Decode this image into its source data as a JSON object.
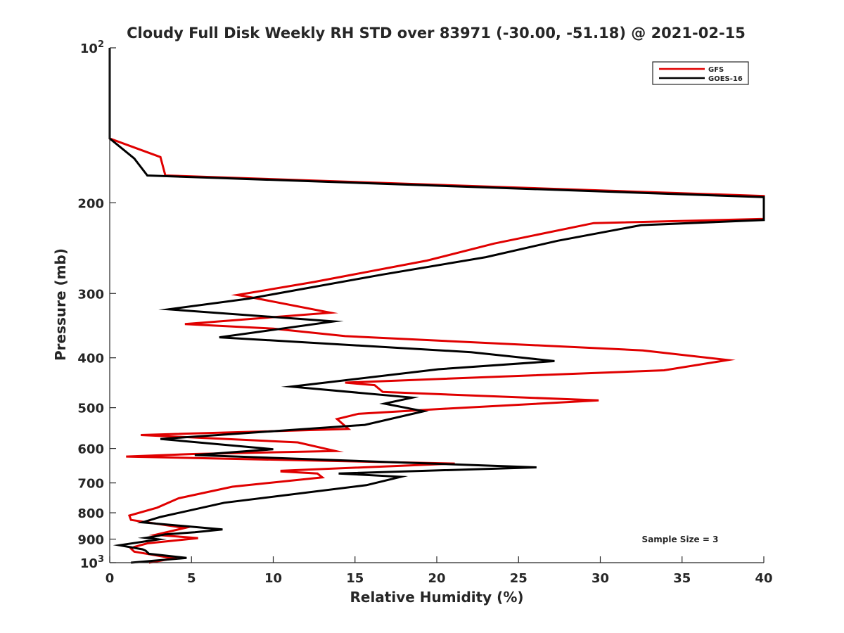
{
  "chart_data": {
    "type": "line",
    "title": "Cloudy Full Disk Weekly RH STD over 83971 (-30.00, -51.18) @ 2021-02-15",
    "xlabel": "Relative Humidity (%)",
    "ylabel": "Pressure (mb)",
    "xlim": [
      0,
      40
    ],
    "ylim": [
      100,
      1000
    ],
    "yscale": "log",
    "y_reversed": true,
    "grid": false,
    "legend_position": "top-right",
    "x_ticks": [
      "0",
      "5",
      "10",
      "15",
      "20",
      "25",
      "30",
      "35",
      "40"
    ],
    "y_ticks": [
      {
        "value": 100,
        "base": "10",
        "exp": "2"
      },
      {
        "value": 200,
        "label": "200"
      },
      {
        "value": 300,
        "label": "300"
      },
      {
        "value": 400,
        "label": "400"
      },
      {
        "value": 500,
        "label": "500"
      },
      {
        "value": 600,
        "label": "600"
      },
      {
        "value": 700,
        "label": "700"
      },
      {
        "value": 800,
        "label": "800"
      },
      {
        "value": 900,
        "label": "900"
      },
      {
        "value": 1000,
        "base": "10",
        "exp": "3"
      }
    ],
    "series": [
      {
        "name": "GFS",
        "color": "#e00000",
        "points": [
          [
            0,
            100
          ],
          [
            0,
            150
          ],
          [
            3.1,
            163
          ],
          [
            3.4,
            177
          ],
          [
            40,
            194
          ],
          [
            40,
            215
          ],
          [
            29.6,
            219
          ],
          [
            23.5,
            240
          ],
          [
            19.4,
            259
          ],
          [
            12.5,
            285
          ],
          [
            7.8,
            302
          ],
          [
            8.6,
            305
          ],
          [
            13.5,
            327
          ],
          [
            4.6,
            344
          ],
          [
            10,
            351
          ],
          [
            14.4,
            363
          ],
          [
            32.6,
            387
          ],
          [
            37.8,
            404
          ],
          [
            33.9,
            423
          ],
          [
            14.4,
            447
          ],
          [
            16.2,
            452
          ],
          [
            16.7,
            466
          ],
          [
            29.9,
            484
          ],
          [
            20.2,
            503
          ],
          [
            15.2,
            514
          ],
          [
            13.9,
            526
          ],
          [
            14.6,
            550
          ],
          [
            1.9,
            565
          ],
          [
            11.5,
            584
          ],
          [
            13.8,
            607
          ],
          [
            5.1,
            615
          ],
          [
            1.0,
            622
          ],
          [
            21.1,
            642
          ],
          [
            10.5,
            663
          ],
          [
            10.5,
            665
          ],
          [
            12.7,
            671
          ],
          [
            13.0,
            683
          ],
          [
            7.5,
            712
          ],
          [
            4.2,
            750
          ],
          [
            2.9,
            782
          ],
          [
            1.2,
            810
          ],
          [
            1.3,
            826
          ],
          [
            4.6,
            856
          ],
          [
            2.8,
            883
          ],
          [
            5.4,
            896
          ],
          [
            2.3,
            917
          ],
          [
            1.5,
            932
          ],
          [
            1.3,
            939
          ],
          [
            1.5,
            952
          ],
          [
            2.6,
            965
          ],
          [
            3.9,
            981
          ],
          [
            2.4,
            1000
          ]
        ]
      },
      {
        "name": "GOES-16",
        "color": "#000000",
        "points": [
          [
            0,
            100
          ],
          [
            0,
            150
          ],
          [
            1.5,
            164
          ],
          [
            2.3,
            177
          ],
          [
            40,
            195
          ],
          [
            40,
            216
          ],
          [
            32.5,
            221
          ],
          [
            27.4,
            237
          ],
          [
            23,
            255
          ],
          [
            16.6,
            276
          ],
          [
            8.5,
            307
          ],
          [
            3.6,
            322
          ],
          [
            13.7,
            340
          ],
          [
            6.7,
            365
          ],
          [
            22.1,
            390
          ],
          [
            27.2,
            406
          ],
          [
            20.1,
            421
          ],
          [
            11.1,
            455
          ],
          [
            18.5,
            478
          ],
          [
            16.8,
            491
          ],
          [
            19.2,
            508
          ],
          [
            15.6,
            540
          ],
          [
            3.1,
            575
          ],
          [
            10,
            602
          ],
          [
            5.2,
            618
          ],
          [
            26.1,
            653
          ],
          [
            14,
            671
          ],
          [
            17.8,
            681
          ],
          [
            15.7,
            707
          ],
          [
            7,
            765
          ],
          [
            3.1,
            815
          ],
          [
            2,
            835
          ],
          [
            6.9,
            862
          ],
          [
            5.2,
            873
          ],
          [
            3.4,
            881
          ],
          [
            2.7,
            890
          ],
          [
            2.2,
            895
          ],
          [
            3,
            901
          ],
          [
            0.6,
            925
          ],
          [
            2,
            942
          ],
          [
            2.2,
            948
          ],
          [
            2.4,
            961
          ],
          [
            4.7,
            979
          ],
          [
            1.3,
            1000
          ]
        ]
      }
    ],
    "annotation": "Sample Size = 3"
  }
}
